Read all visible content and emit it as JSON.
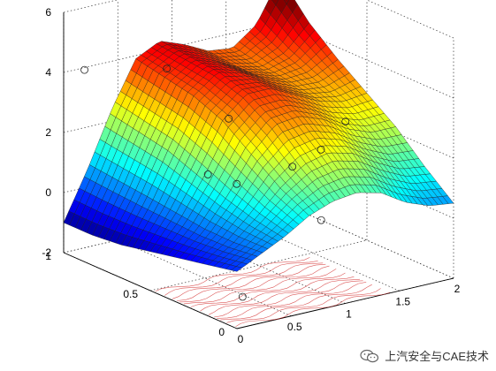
{
  "chart_data": {
    "type": "surface",
    "title": "",
    "xlabel": "",
    "ylabel": "",
    "zlabel": "",
    "xlim": [
      0,
      2
    ],
    "ylim": [
      0,
      1
    ],
    "zlim": [
      -2,
      6
    ],
    "x_ticks": [
      "0",
      "0.5",
      "1",
      "1.5",
      "2"
    ],
    "y_ticks": [
      "0",
      "0.5",
      "1"
    ],
    "z_ticks": [
      "-2",
      "0",
      "2",
      "4",
      "6"
    ],
    "grid": true,
    "colormap": "jet",
    "surface_z": [
      [
        -0.1,
        0.3,
        0.7,
        1.2,
        1.5,
        1.6,
        1.4,
        0.9,
        0.6,
        0.5
      ],
      [
        -0.3,
        0.2,
        0.9,
        1.7,
        2.3,
        2.5,
        2.3,
        1.8,
        1.4,
        1.3
      ],
      [
        -0.5,
        0.2,
        1.2,
        2.4,
        3.2,
        3.3,
        3.0,
        2.5,
        2.2,
        2.2
      ],
      [
        -0.7,
        0.3,
        1.6,
        3.1,
        3.8,
        3.8,
        3.4,
        3.0,
        2.8,
        2.9
      ],
      [
        -0.9,
        0.4,
        2.0,
        3.5,
        4.1,
        3.9,
        3.5,
        3.2,
        3.2,
        3.6
      ],
      [
        -1.0,
        0.5,
        2.2,
        3.7,
        4.2,
        3.9,
        3.5,
        3.3,
        3.6,
        4.4
      ],
      [
        -1.0,
        0.6,
        2.4,
        3.9,
        4.3,
        4.0,
        3.6,
        3.5,
        4.1,
        5.5
      ]
    ],
    "scatter_points": [
      {
        "x": 0.16,
        "y": 0.98,
        "z": 4.0
      },
      {
        "x": 0.84,
        "y": 0.93,
        "z": 3.6
      },
      {
        "x": 0.98,
        "y": 0.66,
        "z": 2.5
      },
      {
        "x": 0.5,
        "y": 0.48,
        "z": 1.5
      },
      {
        "x": 0.75,
        "y": 0.47,
        "z": 1.0
      },
      {
        "x": 1.2,
        "y": 0.43,
        "z": 1.3
      },
      {
        "x": 1.4,
        "y": 0.39,
        "z": 1.8
      },
      {
        "x": 1.85,
        "y": 0.53,
        "z": 2.0
      },
      {
        "x": 1.05,
        "y": 0.17,
        "z": 0.3
      },
      {
        "x": 0.1,
        "y": 0.03,
        "z": -1.1
      }
    ],
    "contour_color": "#d02020"
  },
  "watermark": {
    "text": "上汽安全与CAE技术",
    "icon": "wechat-logo-icon"
  }
}
